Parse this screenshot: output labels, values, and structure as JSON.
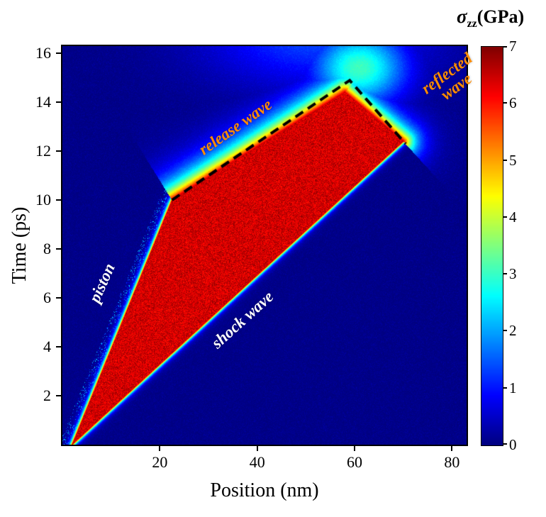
{
  "figure": {
    "background": "#ffffff"
  },
  "chart_data": {
    "type": "heatmap",
    "title": "",
    "xlabel": "Position (nm)",
    "ylabel": "Time (ps)",
    "xlim": [
      0,
      83
    ],
    "ylim": [
      0,
      16.3
    ],
    "xticks": [
      20,
      40,
      60,
      80
    ],
    "yticks": [
      2,
      4,
      6,
      8,
      10,
      12,
      14,
      16
    ],
    "colormap": "jet",
    "value_label": "sigma_zz (GPa)",
    "value_range": [
      0,
      7
    ],
    "plateau_stress_gpa": 6.4,
    "background_stress_gpa": 0,
    "features": {
      "description": "Position-time (x-t) diagram of longitudinal stress sigma_zz during shock compression: piston-driven shock wave, release wave and reflected wave.",
      "piston_path": [
        [
          2,
          0
        ],
        [
          22.5,
          10
        ]
      ],
      "shock_front": [
        [
          2,
          0
        ],
        [
          70,
          12.4
        ]
      ],
      "release_front": [
        [
          22.5,
          10
        ],
        [
          59,
          14.9
        ]
      ],
      "reflected_front": [
        [
          59,
          14.9
        ],
        [
          70.5,
          12.3
        ]
      ],
      "red_polygon": [
        [
          2,
          0
        ],
        [
          22.5,
          10
        ],
        [
          58,
          14.4
        ],
        [
          70,
          12.4
        ]
      ],
      "edge_decay_nm": [
        0.45,
        3.0,
        2.4,
        0.4
      ],
      "blobs": [
        {
          "x": 61,
          "t": 15.4,
          "sx": 9.5,
          "st": 1.5,
          "amp": 3.0
        },
        {
          "x": 52,
          "t": 16.8,
          "sx": 22,
          "st": 2.2,
          "amp": 1.3
        }
      ],
      "dashed_line": [
        [
          22.5,
          10
        ],
        [
          59,
          14.9
        ],
        [
          70.5,
          12.3
        ]
      ],
      "dashed_color": "#000000"
    },
    "annotations": [
      {
        "id": "piston",
        "text": "piston",
        "x": 8.2,
        "t": 6.6,
        "rot": -66,
        "color": "#ffffff"
      },
      {
        "id": "shock-wave",
        "text": "shock wave",
        "x": 37,
        "t": 5.1,
        "rot": -42,
        "color": "#ffffff"
      },
      {
        "id": "release-wave",
        "text": "release wave",
        "x": 35.5,
        "t": 13.0,
        "rot": -35,
        "color": "#ff8c00"
      },
      {
        "id": "reflected-wave",
        "text": "reflected wave",
        "lines": [
          "reflected",
          "wave"
        ],
        "x": 80,
        "t": 14.9,
        "rot": -36,
        "color": "#ff8c00"
      }
    ]
  },
  "colorbar": {
    "title_sigma": "σ",
    "title_sub": "zz",
    "title_rest": "(GPa)",
    "min": 0,
    "max": 7,
    "ticks": [
      0,
      1,
      2,
      3,
      4,
      5,
      6,
      7
    ]
  }
}
